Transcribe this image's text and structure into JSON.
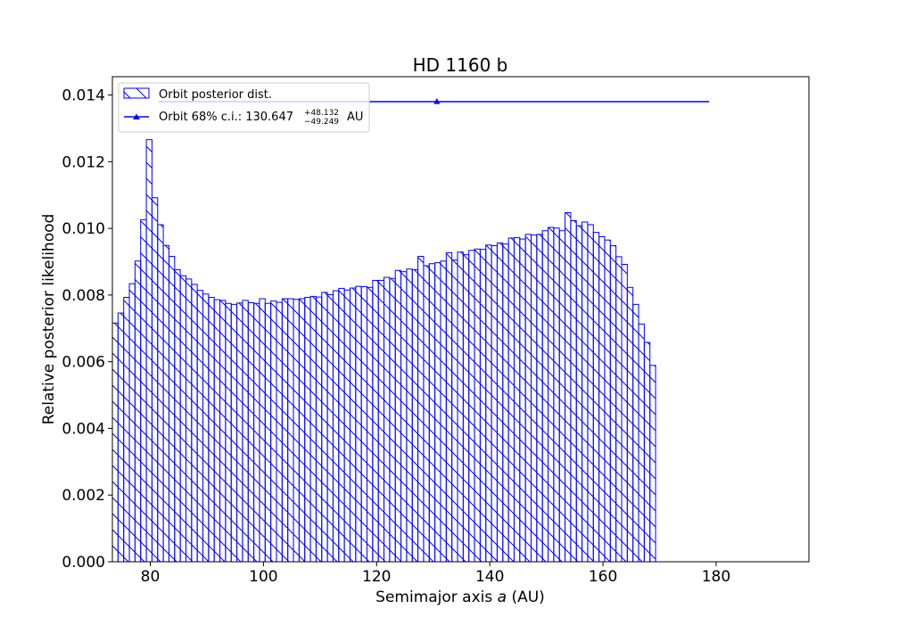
{
  "chart_data": {
    "type": "bar",
    "title": "HD 1160 b",
    "xlabel_prefix": "Semimajor axis ",
    "xlabel_var": "a",
    "xlabel_suffix": " (AU)",
    "ylabel": "Relative posterior likelihood",
    "xlim": [
      73.3,
      196.4
    ],
    "ylim": [
      0,
      0.01455
    ],
    "x_ticks": [
      80,
      100,
      120,
      140,
      160,
      180
    ],
    "y_ticks": [
      0.0,
      0.002,
      0.004,
      0.006,
      0.008,
      0.01,
      0.012,
      0.014
    ],
    "y_tick_labels": [
      "0.000",
      "0.002",
      "0.004",
      "0.006",
      "0.008",
      "0.010",
      "0.012",
      "0.014"
    ],
    "bar_color": "#0000ff",
    "bins_start": 73.3,
    "bin_width": 1.0,
    "values": [
      0.00716,
      0.00746,
      0.00793,
      0.00834,
      0.00902,
      0.01026,
      0.01266,
      0.01092,
      0.01011,
      0.00949,
      0.00916,
      0.00876,
      0.00858,
      0.00848,
      0.00832,
      0.00814,
      0.00803,
      0.00793,
      0.00786,
      0.00784,
      0.00775,
      0.00772,
      0.00776,
      0.00784,
      0.00777,
      0.00775,
      0.00789,
      0.00775,
      0.00782,
      0.00778,
      0.00789,
      0.00789,
      0.00787,
      0.00789,
      0.00793,
      0.00796,
      0.00794,
      0.00808,
      0.00801,
      0.00813,
      0.0082,
      0.00815,
      0.00821,
      0.00826,
      0.00825,
      0.00823,
      0.00844,
      0.00844,
      0.00853,
      0.0085,
      0.00874,
      0.0087,
      0.00878,
      0.00876,
      0.00916,
      0.00888,
      0.00894,
      0.00897,
      0.00902,
      0.00927,
      0.00905,
      0.00929,
      0.00921,
      0.00934,
      0.00938,
      0.00937,
      0.0095,
      0.00948,
      0.00956,
      0.00953,
      0.00971,
      0.00972,
      0.00968,
      0.00982,
      0.0098,
      0.00982,
      0.00993,
      0.01003,
      0.01001,
      0.00993,
      0.01047,
      0.01023,
      0.01008,
      0.01019,
      0.01011,
      0.00988,
      0.00975,
      0.00965,
      0.00948,
      0.00915,
      0.00892,
      0.00823,
      0.00772,
      0.00713,
      0.00658,
      0.00589
    ],
    "legend": {
      "location": "upper left",
      "hist_label": "Orbit posterior dist.",
      "ci_prefix": "Orbit 68% c.i.: ",
      "ci_value": "130.647",
      "ci_plus": "+48.132",
      "ci_minus": "−49.249",
      "ci_unit": "AU"
    },
    "ci_marker": {
      "center": 130.647,
      "low": 81.398,
      "high": 178.779,
      "y": 0.0138
    }
  }
}
